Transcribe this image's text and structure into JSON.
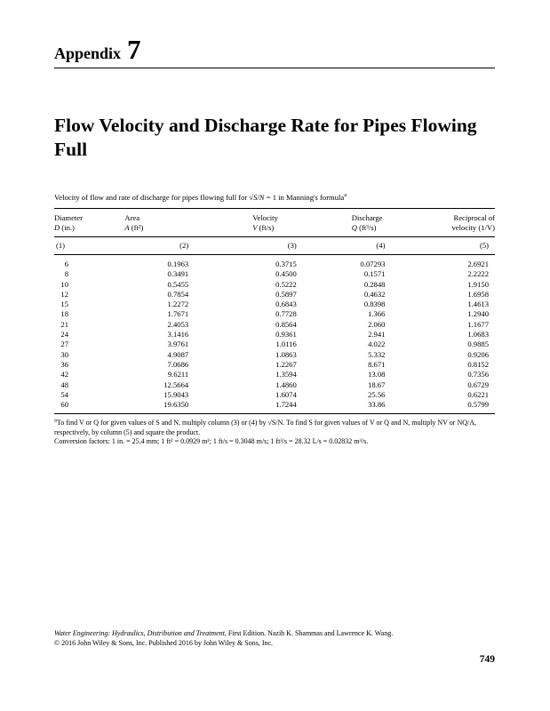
{
  "appendix": {
    "label": "Appendix",
    "number": "7"
  },
  "title": "Flow Velocity and Discharge Rate for Pipes Flowing Full",
  "caption": {
    "text1": "Velocity of flow and rate of discharge for pipes flowing full for ",
    "formula": "√S/N",
    "text2": " = 1 in Manning's formula",
    "sup": "a"
  },
  "table": {
    "headers": [
      {
        "line1": "Diameter",
        "var": "D",
        "rest": " (in.)"
      },
      {
        "line1": "Area",
        "var": "A",
        "rest": " (ft²)"
      },
      {
        "line1": "Velocity",
        "var": "V",
        "rest": " (ft/s)"
      },
      {
        "line1": "Discharge",
        "var": "Q",
        "rest": " (ft³/s)"
      },
      {
        "line1": "Reciprocal of",
        "var": "",
        "rest": "velocity (1/V)"
      }
    ],
    "col_numbers": [
      "(1)",
      "(2)",
      "(3)",
      "(4)",
      "(5)"
    ],
    "rows": [
      [
        "6",
        "0.1963",
        "0.3715",
        "0.07293",
        "2.6921"
      ],
      [
        "8",
        "0.3491",
        "0.4500",
        "0.1571",
        "2.2222"
      ],
      [
        "10",
        "0.5455",
        "0.5222",
        "0.2848",
        "1.9150"
      ],
      [
        "12",
        "0.7854",
        "0.5897",
        "0.4632",
        "1.6958"
      ],
      [
        "15",
        "1.2272",
        "0.6843",
        "0.8398",
        "1.4613"
      ],
      [
        "18",
        "1.7671",
        "0.7728",
        "1.366",
        "1.2940"
      ],
      [
        "21",
        "2.4053",
        "0.8564",
        "2.060",
        "1.1677"
      ],
      [
        "24",
        "3.1416",
        "0.9361",
        "2.941",
        "1.0683"
      ],
      [
        "27",
        "3.9761",
        "1.0116",
        "4.022",
        "0.9885"
      ],
      [
        "30",
        "4.9087",
        "1.0863",
        "5.332",
        "0.9206"
      ],
      [
        "36",
        "7.0686",
        "1.2267",
        "8.671",
        "0.8152"
      ],
      [
        "42",
        "9.6211",
        "1.3594",
        "13.08",
        "0.7356"
      ],
      [
        "48",
        "12.5664",
        "1.4860",
        "18.67",
        "0.6729"
      ],
      [
        "54",
        "15.9043",
        "1.6074",
        "25.56",
        "0.6221"
      ],
      [
        "60",
        "19.6350",
        "1.7244",
        "33.86",
        "0.5799"
      ]
    ]
  },
  "footnotes": {
    "sup": "a",
    "note": "To find V or Q for given values of S and N, multiply column (3) or (4) by √S/N. To find S for given values of V or Q and N, multiply NV or NQ/A, respectively, by column (5) and square the product.",
    "conversion": "Conversion factors: 1 in. = 25.4 mm; 1 ft² = 0.0929 m²; 1 ft/s = 0.3048 m/s; 1 ft³/s = 28.32 L/s = 0.02832 m³/s."
  },
  "footer": {
    "book_title": "Water Engineering: Hydraulics, Distribution and Treatment",
    "line1_rest": ", First Edition. Nazih K. Shammas and Lawrence K. Wang.",
    "line2": "© 2016 John Wiley & Sons, Inc. Published 2016 by John Wiley & Sons, Inc."
  },
  "page": {
    "number": "749"
  }
}
